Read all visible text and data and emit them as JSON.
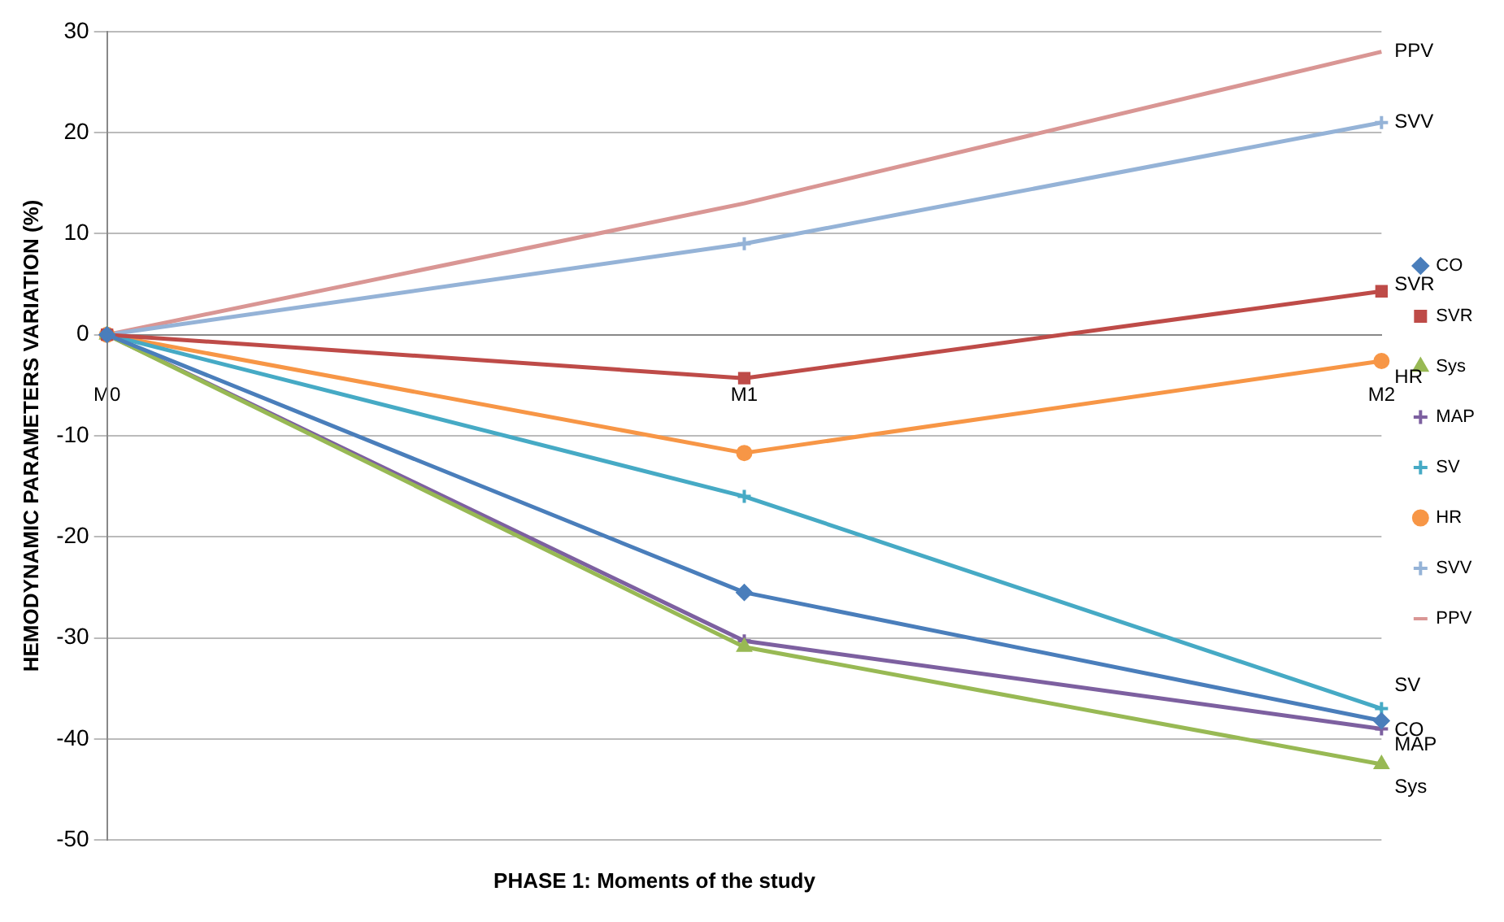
{
  "chart_data": {
    "type": "line",
    "xlabel": "PHASE 1: Moments of the study",
    "ylabel": "HEMODYNAMIC PARAMETERS VARIATION (%)",
    "categories": [
      "M0",
      "M1",
      "M2"
    ],
    "ylim": [
      -50,
      30
    ],
    "yticks": [
      -50,
      -40,
      -30,
      -20,
      -10,
      0,
      10,
      20,
      30
    ],
    "grid": "y",
    "legend": "right",
    "line_style": "solid",
    "series": [
      {
        "name": "CO",
        "color": "#4a7ebb",
        "marker": "diamond",
        "values": [
          0,
          -25.5,
          -38.2
        ]
      },
      {
        "name": "SVR",
        "color": "#be4b48",
        "marker": "square",
        "values": [
          0,
          -4.3,
          4.3
        ]
      },
      {
        "name": "Sys",
        "color": "#98b954",
        "marker": "triangle",
        "values": [
          0,
          -30.9,
          -42.5
        ]
      },
      {
        "name": "MAP",
        "color": "#7d60a0",
        "marker": "cross",
        "values": [
          0,
          -30.3,
          -39
        ]
      },
      {
        "name": "SV",
        "color": "#46aac5",
        "marker": "cross",
        "values": [
          0,
          -16,
          -37
        ]
      },
      {
        "name": "HR",
        "color": "#f79646",
        "marker": "circle",
        "values": [
          0,
          -11.7,
          -2.6
        ]
      },
      {
        "name": "SVV",
        "color": "#95b3d7",
        "marker": "cross",
        "values": [
          0,
          9,
          21
        ]
      },
      {
        "name": "PPV",
        "color": "#d99694",
        "marker": "none",
        "values": [
          0,
          13,
          28
        ]
      }
    ]
  }
}
